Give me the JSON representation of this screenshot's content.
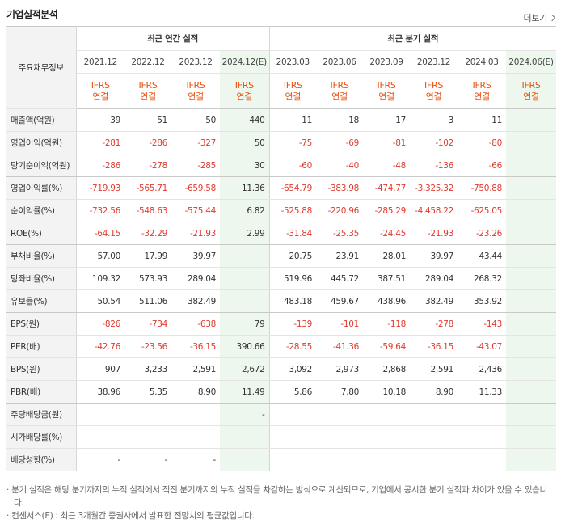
{
  "header": {
    "title": "기업실적분석",
    "more_label": "더보기"
  },
  "table": {
    "row_header_label": "주요재무정보",
    "group_annual": "최근 연간 실적",
    "group_quarter": "최근 분기 실적",
    "periods": [
      "2021.12",
      "2022.12",
      "2023.12",
      "2024.12(E)",
      "2023.03",
      "2023.06",
      "2023.09",
      "2023.12",
      "2024.03",
      "2024.06(E)"
    ],
    "ifrs_top": "IFRS",
    "ifrs_bottom": "연결",
    "rows": [
      {
        "label": "매출액(억원)",
        "values": [
          "39",
          "51",
          "50",
          "440",
          "11",
          "18",
          "17",
          "3",
          "11",
          ""
        ]
      },
      {
        "label": "영업이익(억원)",
        "values": [
          "-281",
          "-286",
          "-327",
          "50",
          "-75",
          "-69",
          "-81",
          "-102",
          "-80",
          ""
        ]
      },
      {
        "label": "당기순이익(억원)",
        "values": [
          "-286",
          "-278",
          "-285",
          "30",
          "-60",
          "-40",
          "-48",
          "-136",
          "-66",
          ""
        ]
      },
      {
        "label": "영업이익률(%)",
        "values": [
          "-719.93",
          "-565.71",
          "-659.58",
          "11.36",
          "-654.79",
          "-383.98",
          "-474.77",
          "-3,325.32",
          "-750.88",
          ""
        ]
      },
      {
        "label": "순이익률(%)",
        "values": [
          "-732.56",
          "-548.63",
          "-575.44",
          "6.82",
          "-525.88",
          "-220.96",
          "-285.29",
          "-4,458.22",
          "-625.05",
          ""
        ]
      },
      {
        "label": "ROE(%)",
        "values": [
          "-64.15",
          "-32.29",
          "-21.93",
          "2.99",
          "-31.84",
          "-25.35",
          "-24.45",
          "-21.93",
          "-23.26",
          ""
        ]
      },
      {
        "label": "부채비율(%)",
        "values": [
          "57.00",
          "17.99",
          "39.97",
          "",
          "20.75",
          "23.91",
          "28.01",
          "39.97",
          "43.44",
          ""
        ]
      },
      {
        "label": "당좌비율(%)",
        "values": [
          "109.32",
          "573.93",
          "289.04",
          "",
          "519.96",
          "445.72",
          "387.51",
          "289.04",
          "268.32",
          ""
        ]
      },
      {
        "label": "유보율(%)",
        "values": [
          "50.54",
          "511.06",
          "382.49",
          "",
          "483.18",
          "459.67",
          "438.96",
          "382.49",
          "353.92",
          ""
        ]
      },
      {
        "label": "EPS(원)",
        "values": [
          "-826",
          "-734",
          "-638",
          "79",
          "-139",
          "-101",
          "-118",
          "-278",
          "-143",
          ""
        ]
      },
      {
        "label": "PER(배)",
        "values": [
          "-42.76",
          "-23.56",
          "-36.15",
          "390.66",
          "-28.55",
          "-41.36",
          "-59.64",
          "-36.15",
          "-43.07",
          ""
        ]
      },
      {
        "label": "BPS(원)",
        "values": [
          "907",
          "3,233",
          "2,591",
          "2,672",
          "3,092",
          "2,973",
          "2,868",
          "2,591",
          "2,436",
          ""
        ]
      },
      {
        "label": "PBR(배)",
        "values": [
          "38.96",
          "5.35",
          "8.90",
          "11.49",
          "5.86",
          "7.80",
          "10.18",
          "8.90",
          "11.33",
          ""
        ]
      },
      {
        "label": "주당배당금(원)",
        "values": [
          "",
          "",
          "",
          "-",
          "",
          "",
          "",
          "",
          "",
          ""
        ]
      },
      {
        "label": "시가배당률(%)",
        "values": [
          "",
          "",
          "",
          "",
          "",
          "",
          "",
          "",
          "",
          ""
        ]
      },
      {
        "label": "배당성향(%)",
        "values": [
          "-",
          "-",
          "-",
          "",
          "",
          "",
          "",
          "",
          "",
          ""
        ]
      }
    ]
  },
  "notes": [
    "분기 실적은 해당 분기까지의 누적 실적에서 직전 분기까지의 누적 실적을 차감하는 방식으로 계산되므로, 기업에서 공시한 분기 실적과 차이가 있을 수 있습니다.",
    "컨센서스(E) : 최근 3개월간 증권사에서 발표한 전망치의 평균값입니다."
  ],
  "colors": {
    "negative": "#e03a2e",
    "ifrs": "#e8500f",
    "estimate_bg": "#edf7ed"
  }
}
